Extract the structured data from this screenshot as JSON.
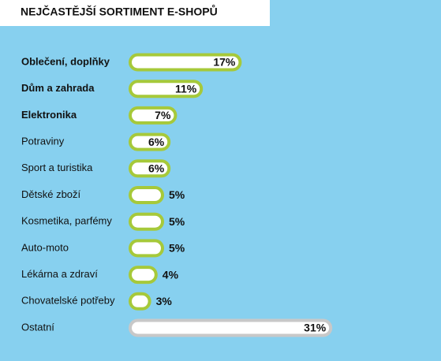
{
  "chart_data": {
    "type": "bar",
    "orientation": "horizontal",
    "title": "NEJČASTĚJŠÍ SORTIMENT E-SHOPŮ",
    "categories": [
      "Oblečení, doplňky",
      "Dům a zahrada",
      "Elektronika",
      "Potraviny",
      "Sport a turistika",
      "Dětské zboží",
      "Kosmetika, parfémy",
      "Auto-moto",
      "Lékárna a zdraví",
      "Chovatelské potřeby",
      "Ostatní"
    ],
    "values": [
      17,
      11,
      7,
      6,
      6,
      5,
      5,
      5,
      4,
      3,
      31
    ],
    "value_labels": [
      "17%",
      "11%",
      "7%",
      "6%",
      "6%",
      "5%",
      "5%",
      "5%",
      "4%",
      "3%",
      "31%"
    ],
    "colors": [
      "#a6c93a",
      "#a6c93a",
      "#a6c93a",
      "#a6c93a",
      "#a6c93a",
      "#a6c93a",
      "#a6c93a",
      "#a6c93a",
      "#a6c93a",
      "#a6c93a",
      "#c8c8c8"
    ],
    "bold_categories": [
      true,
      true,
      true,
      false,
      false,
      false,
      false,
      false,
      false,
      false,
      false
    ]
  }
}
